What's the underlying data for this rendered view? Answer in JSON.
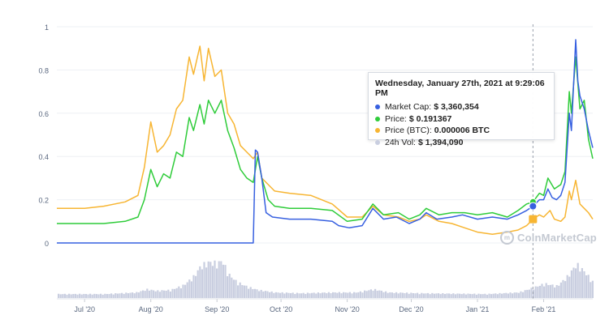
{
  "colors": {
    "market_cap": "#3760e0",
    "price": "#2fcc3a",
    "price_btc": "#f7b532",
    "volume": "#c9cee0"
  },
  "tooltip": {
    "title": "Wednesday, January 27th, 2021 at 9:29:06 PM",
    "rows": [
      {
        "label": "Market Cap:",
        "value": "$ 3,360,354",
        "color": "#3760e0"
      },
      {
        "label": "Price:",
        "value": "$ 0.191367",
        "color": "#2fcc3a"
      },
      {
        "label": "Price (BTC):",
        "value": "0.000006 BTC",
        "color": "#f7b532"
      },
      {
        "label": "24h Vol:",
        "value": "$ 1,394,090",
        "color": "#c9cee0"
      }
    ]
  },
  "watermark": {
    "text": "CoinMarketCap"
  },
  "chart_data": {
    "type": "line",
    "title": "",
    "xlabel": "",
    "ylabel": "",
    "x_range": [
      "2020-06-18",
      "2021-02-24"
    ],
    "ylim": [
      0,
      1
    ],
    "yticks": [
      0,
      0.2,
      0.4,
      0.6,
      0.8,
      1
    ],
    "ytick_labels": [
      "0",
      "0.2",
      "0.4",
      "0.6",
      "0.8",
      "1"
    ],
    "xticks": [
      "2020-07-01",
      "2020-08-01",
      "2020-09-01",
      "2020-10-01",
      "2020-11-01",
      "2020-12-01",
      "2021-01-01",
      "2021-02-01"
    ],
    "xtick_labels": [
      "Jul '20",
      "Aug '20",
      "Sep '20",
      "Oct '20",
      "Nov '20",
      "Dec '20",
      "Jan '21",
      "Feb '21"
    ],
    "grid": true,
    "crosshair_x": "2021-01-27",
    "series": [
      {
        "key": "market_cap",
        "points": [
          [
            "2020-06-18",
            0.0
          ],
          [
            "2020-07-15",
            0.0
          ],
          [
            "2020-08-15",
            0.0
          ],
          [
            "2020-09-10",
            0.0
          ],
          [
            "2020-09-18",
            0.0
          ],
          [
            "2020-09-19",
            0.43
          ],
          [
            "2020-09-20",
            0.42
          ],
          [
            "2020-09-22",
            0.3
          ],
          [
            "2020-09-24",
            0.14
          ],
          [
            "2020-09-27",
            0.12
          ],
          [
            "2020-10-05",
            0.11
          ],
          [
            "2020-10-15",
            0.11
          ],
          [
            "2020-10-25",
            0.1
          ],
          [
            "2020-10-28",
            0.08
          ],
          [
            "2020-11-02",
            0.07
          ],
          [
            "2020-11-08",
            0.08
          ],
          [
            "2020-11-13",
            0.16
          ],
          [
            "2020-11-18",
            0.11
          ],
          [
            "2020-11-24",
            0.12
          ],
          [
            "2020-11-30",
            0.09
          ],
          [
            "2020-12-05",
            0.11
          ],
          [
            "2020-12-08",
            0.14
          ],
          [
            "2020-12-13",
            0.11
          ],
          [
            "2020-12-20",
            0.12
          ],
          [
            "2020-12-25",
            0.13
          ],
          [
            "2021-01-01",
            0.11
          ],
          [
            "2021-01-08",
            0.12
          ],
          [
            "2021-01-15",
            0.11
          ],
          [
            "2021-01-20",
            0.13
          ],
          [
            "2021-01-24",
            0.15
          ],
          [
            "2021-01-27",
            0.17
          ],
          [
            "2021-01-30",
            0.2
          ],
          [
            "2021-02-01",
            0.2
          ],
          [
            "2021-02-03",
            0.25
          ],
          [
            "2021-02-05",
            0.21
          ],
          [
            "2021-02-07",
            0.2
          ],
          [
            "2021-02-09",
            0.22
          ],
          [
            "2021-02-11",
            0.28
          ],
          [
            "2021-02-13",
            0.6
          ],
          [
            "2021-02-14",
            0.52
          ],
          [
            "2021-02-16",
            0.94
          ],
          [
            "2021-02-17",
            0.75
          ],
          [
            "2021-02-18",
            0.68
          ],
          [
            "2021-02-20",
            0.62
          ],
          [
            "2021-02-22",
            0.52
          ],
          [
            "2021-02-24",
            0.44
          ]
        ]
      },
      {
        "key": "price",
        "points": [
          [
            "2020-06-18",
            0.09
          ],
          [
            "2020-07-01",
            0.09
          ],
          [
            "2020-07-10",
            0.09
          ],
          [
            "2020-07-20",
            0.1
          ],
          [
            "2020-07-26",
            0.12
          ],
          [
            "2020-07-29",
            0.2
          ],
          [
            "2020-08-01",
            0.34
          ],
          [
            "2020-08-04",
            0.26
          ],
          [
            "2020-08-07",
            0.32
          ],
          [
            "2020-08-10",
            0.3
          ],
          [
            "2020-08-13",
            0.42
          ],
          [
            "2020-08-16",
            0.4
          ],
          [
            "2020-08-19",
            0.58
          ],
          [
            "2020-08-21",
            0.52
          ],
          [
            "2020-08-24",
            0.64
          ],
          [
            "2020-08-26",
            0.55
          ],
          [
            "2020-08-28",
            0.66
          ],
          [
            "2020-08-31",
            0.6
          ],
          [
            "2020-09-03",
            0.66
          ],
          [
            "2020-09-06",
            0.52
          ],
          [
            "2020-09-09",
            0.44
          ],
          [
            "2020-09-12",
            0.34
          ],
          [
            "2020-09-15",
            0.3
          ],
          [
            "2020-09-18",
            0.28
          ],
          [
            "2020-09-20",
            0.4
          ],
          [
            "2020-09-22",
            0.3
          ],
          [
            "2020-09-25",
            0.2
          ],
          [
            "2020-09-28",
            0.17
          ],
          [
            "2020-10-05",
            0.16
          ],
          [
            "2020-10-15",
            0.16
          ],
          [
            "2020-10-25",
            0.15
          ],
          [
            "2020-11-01",
            0.1
          ],
          [
            "2020-11-08",
            0.11
          ],
          [
            "2020-11-13",
            0.18
          ],
          [
            "2020-11-18",
            0.13
          ],
          [
            "2020-11-25",
            0.14
          ],
          [
            "2020-11-30",
            0.11
          ],
          [
            "2020-12-05",
            0.13
          ],
          [
            "2020-12-08",
            0.16
          ],
          [
            "2020-12-14",
            0.13
          ],
          [
            "2020-12-20",
            0.14
          ],
          [
            "2020-12-26",
            0.14
          ],
          [
            "2021-01-01",
            0.13
          ],
          [
            "2021-01-08",
            0.14
          ],
          [
            "2021-01-15",
            0.12
          ],
          [
            "2021-01-20",
            0.15
          ],
          [
            "2021-01-24",
            0.18
          ],
          [
            "2021-01-27",
            0.19
          ],
          [
            "2021-01-30",
            0.23
          ],
          [
            "2021-02-01",
            0.22
          ],
          [
            "2021-02-03",
            0.3
          ],
          [
            "2021-02-06",
            0.25
          ],
          [
            "2021-02-09",
            0.27
          ],
          [
            "2021-02-11",
            0.33
          ],
          [
            "2021-02-13",
            0.7
          ],
          [
            "2021-02-14",
            0.6
          ],
          [
            "2021-02-16",
            0.86
          ],
          [
            "2021-02-18",
            0.62
          ],
          [
            "2021-02-20",
            0.66
          ],
          [
            "2021-02-22",
            0.48
          ],
          [
            "2021-02-24",
            0.39
          ]
        ]
      },
      {
        "key": "price_btc",
        "points": [
          [
            "2020-06-18",
            0.16
          ],
          [
            "2020-07-01",
            0.16
          ],
          [
            "2020-07-10",
            0.17
          ],
          [
            "2020-07-20",
            0.19
          ],
          [
            "2020-07-26",
            0.22
          ],
          [
            "2020-07-29",
            0.35
          ],
          [
            "2020-08-01",
            0.56
          ],
          [
            "2020-08-04",
            0.42
          ],
          [
            "2020-08-07",
            0.45
          ],
          [
            "2020-08-10",
            0.5
          ],
          [
            "2020-08-13",
            0.62
          ],
          [
            "2020-08-16",
            0.66
          ],
          [
            "2020-08-19",
            0.86
          ],
          [
            "2020-08-21",
            0.78
          ],
          [
            "2020-08-24",
            0.91
          ],
          [
            "2020-08-26",
            0.75
          ],
          [
            "2020-08-28",
            0.9
          ],
          [
            "2020-08-31",
            0.77
          ],
          [
            "2020-09-03",
            0.8
          ],
          [
            "2020-09-06",
            0.6
          ],
          [
            "2020-09-09",
            0.55
          ],
          [
            "2020-09-12",
            0.45
          ],
          [
            "2020-09-15",
            0.42
          ],
          [
            "2020-09-18",
            0.39
          ],
          [
            "2020-09-20",
            0.42
          ],
          [
            "2020-09-22",
            0.3
          ],
          [
            "2020-09-25",
            0.27
          ],
          [
            "2020-09-28",
            0.24
          ],
          [
            "2020-10-05",
            0.23
          ],
          [
            "2020-10-15",
            0.22
          ],
          [
            "2020-10-25",
            0.18
          ],
          [
            "2020-11-01",
            0.12
          ],
          [
            "2020-11-08",
            0.12
          ],
          [
            "2020-11-13",
            0.17
          ],
          [
            "2020-11-18",
            0.13
          ],
          [
            "2020-11-25",
            0.12
          ],
          [
            "2020-11-30",
            0.1
          ],
          [
            "2020-12-05",
            0.11
          ],
          [
            "2020-12-08",
            0.13
          ],
          [
            "2020-12-14",
            0.1
          ],
          [
            "2020-12-20",
            0.09
          ],
          [
            "2020-12-26",
            0.07
          ],
          [
            "2021-01-01",
            0.05
          ],
          [
            "2021-01-08",
            0.04
          ],
          [
            "2021-01-15",
            0.05
          ],
          [
            "2021-01-20",
            0.06
          ],
          [
            "2021-01-24",
            0.08
          ],
          [
            "2021-01-27",
            0.11
          ],
          [
            "2021-01-30",
            0.13
          ],
          [
            "2021-02-01",
            0.12
          ],
          [
            "2021-02-04",
            0.15
          ],
          [
            "2021-02-06",
            0.11
          ],
          [
            "2021-02-09",
            0.1
          ],
          [
            "2021-02-11",
            0.12
          ],
          [
            "2021-02-13",
            0.24
          ],
          [
            "2021-02-14",
            0.2
          ],
          [
            "2021-02-16",
            0.29
          ],
          [
            "2021-02-18",
            0.18
          ],
          [
            "2021-02-20",
            0.16
          ],
          [
            "2021-02-22",
            0.14
          ],
          [
            "2021-02-24",
            0.11
          ]
        ]
      }
    ],
    "volume": {
      "key": "volume",
      "points": [
        [
          "2020-06-18",
          0.1
        ],
        [
          "2020-07-10",
          0.1
        ],
        [
          "2020-07-25",
          0.14
        ],
        [
          "2020-07-30",
          0.22
        ],
        [
          "2020-08-03",
          0.18
        ],
        [
          "2020-08-10",
          0.2
        ],
        [
          "2020-08-16",
          0.32
        ],
        [
          "2020-08-21",
          0.55
        ],
        [
          "2020-08-24",
          0.8
        ],
        [
          "2020-08-28",
          0.9
        ],
        [
          "2020-09-01",
          0.86
        ],
        [
          "2020-09-03",
          0.95
        ],
        [
          "2020-09-06",
          0.6
        ],
        [
          "2020-09-10",
          0.4
        ],
        [
          "2020-09-15",
          0.28
        ],
        [
          "2020-09-20",
          0.2
        ],
        [
          "2020-09-28",
          0.14
        ],
        [
          "2020-10-10",
          0.12
        ],
        [
          "2020-10-25",
          0.14
        ],
        [
          "2020-11-05",
          0.14
        ],
        [
          "2020-11-13",
          0.22
        ],
        [
          "2020-11-20",
          0.14
        ],
        [
          "2020-12-05",
          0.12
        ],
        [
          "2020-12-20",
          0.11
        ],
        [
          "2021-01-05",
          0.1
        ],
        [
          "2021-01-20",
          0.14
        ],
        [
          "2021-01-27",
          0.26
        ],
        [
          "2021-02-01",
          0.36
        ],
        [
          "2021-02-07",
          0.3
        ],
        [
          "2021-02-12",
          0.55
        ],
        [
          "2021-02-16",
          0.85
        ],
        [
          "2021-02-20",
          0.65
        ],
        [
          "2021-02-24",
          0.38
        ]
      ]
    }
  }
}
